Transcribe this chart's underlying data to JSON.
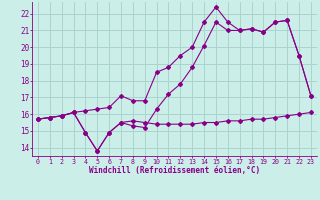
{
  "xlabel": "Windchill (Refroidissement éolien,°C)",
  "bg_color": "#cceee8",
  "grid_color": "#aad4ce",
  "line_color": "#880088",
  "xlim": [
    -0.5,
    23.5
  ],
  "ylim": [
    13.5,
    22.7
  ],
  "xticks": [
    0,
    1,
    2,
    3,
    4,
    5,
    6,
    7,
    8,
    9,
    10,
    11,
    12,
    13,
    14,
    15,
    16,
    17,
    18,
    19,
    20,
    21,
    22,
    23
  ],
  "yticks": [
    14,
    15,
    16,
    17,
    18,
    19,
    20,
    21,
    22
  ],
  "line1_x": [
    0,
    1,
    2,
    3,
    4,
    5,
    6,
    7,
    8,
    9,
    10,
    11,
    12,
    13,
    14,
    15,
    16,
    17,
    18,
    19,
    20,
    21,
    22,
    23
  ],
  "line1_y": [
    15.7,
    15.8,
    15.9,
    16.1,
    14.9,
    13.8,
    14.9,
    15.5,
    15.6,
    15.5,
    15.4,
    15.4,
    15.4,
    15.4,
    15.5,
    15.5,
    15.6,
    15.6,
    15.7,
    15.7,
    15.8,
    15.9,
    16.0,
    16.1
  ],
  "line2_x": [
    0,
    1,
    2,
    3,
    4,
    5,
    6,
    7,
    8,
    9,
    10,
    11,
    12,
    13,
    14,
    15,
    16,
    17,
    18,
    19,
    20,
    21,
    22,
    23
  ],
  "line2_y": [
    15.7,
    15.8,
    15.9,
    16.1,
    16.2,
    16.3,
    16.4,
    17.1,
    16.8,
    16.8,
    18.5,
    18.8,
    19.5,
    20.0,
    21.5,
    22.4,
    21.5,
    21.0,
    21.1,
    20.9,
    21.5,
    21.6,
    19.5,
    17.1
  ],
  "line3_x": [
    0,
    1,
    2,
    3,
    4,
    5,
    6,
    7,
    8,
    9,
    10,
    11,
    12,
    13,
    14,
    15,
    16,
    17,
    18,
    19,
    20,
    21,
    22,
    23
  ],
  "line3_y": [
    15.7,
    15.8,
    15.9,
    16.1,
    14.9,
    13.8,
    14.9,
    15.5,
    15.3,
    15.2,
    16.3,
    17.2,
    17.8,
    18.8,
    20.1,
    21.5,
    21.0,
    21.0,
    21.1,
    20.9,
    21.5,
    21.6,
    19.5,
    17.1
  ]
}
